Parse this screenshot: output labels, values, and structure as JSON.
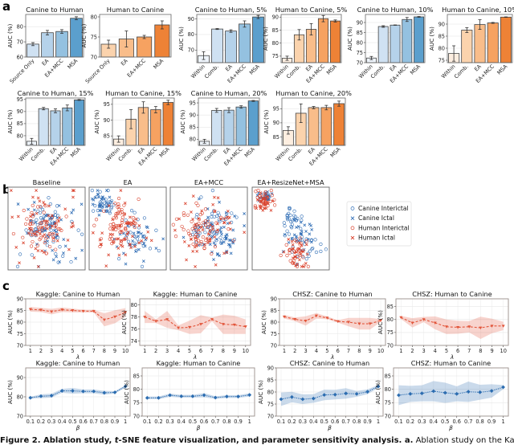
{
  "panel_labels": {
    "a": "a",
    "b": "b",
    "c": "c"
  },
  "axis": {
    "auc_label": "AUC (%)",
    "lambda_label": "λ",
    "beta_label": "β"
  },
  "colors": {
    "blue_ramp": [
      "#eef4fb",
      "#cfe1f2",
      "#b5d2ea",
      "#94c1e0",
      "#5b9fcd"
    ],
    "orange_ramp": [
      "#fdeee0",
      "#fbd3ad",
      "#f9bd8a",
      "#f6a261",
      "#ee8236"
    ],
    "canine": "#2f6db5",
    "human": "#d9402b",
    "line_red": "#e2553a",
    "line_blue": "#2b6cb0"
  },
  "chart_data": [
    {
      "type": "bar",
      "title": "Canine to Human",
      "ylabel": "AUC (%)",
      "ramp": "blue",
      "categories": [
        "Source Only",
        "EA",
        "EA+MCC",
        "MSA"
      ],
      "values": [
        68.5,
        76.0,
        76.8,
        85.5
      ],
      "errors": [
        1.0,
        1.5,
        1.2,
        1.0
      ],
      "ylim": [
        60,
        88
      ],
      "yticks": [
        60,
        70,
        80
      ]
    },
    {
      "type": "bar",
      "title": "Human to Canine",
      "ylabel": "AUC (%)",
      "ramp": "orange",
      "categories": [
        "Source Only",
        "EA",
        "EA+MCC",
        "MSA"
      ],
      "values": [
        73.2,
        74.5,
        75.0,
        78.0
      ],
      "errors": [
        1.0,
        2.0,
        0.4,
        1.0
      ],
      "ylim": [
        70,
        80.6
      ],
      "yticks": [
        70,
        75,
        80
      ]
    },
    {
      "type": "bar",
      "title": "Canine to Human, 5%",
      "ylabel": "AUC (%)",
      "ramp": "blue",
      "categories": [
        "Within",
        "Comb.",
        "EA",
        "EA+MCC",
        "MSA"
      ],
      "values": [
        66.5,
        83.5,
        82.2,
        86.7,
        91.2
      ],
      "errors": [
        2.5,
        0.3,
        0.8,
        2.0,
        1.0
      ],
      "ylim": [
        62,
        92.8
      ],
      "yticks": [
        70,
        80,
        90
      ]
    },
    {
      "type": "bar",
      "title": "Human to Canine, 5%",
      "ylabel": "AUC (%)",
      "ramp": "orange",
      "categories": [
        "Within",
        "Comb.",
        "EA",
        "EA+MCC",
        "MSA"
      ],
      "values": [
        74.2,
        83.2,
        85.3,
        89.4,
        88.5
      ],
      "errors": [
        0.8,
        2.0,
        2.2,
        1.2,
        0.4
      ],
      "ylim": [
        72.5,
        91
      ],
      "yticks": [
        75,
        80,
        85,
        90
      ]
    },
    {
      "type": "bar",
      "title": "Canine to Human, 10%",
      "ylabel": "AUC (%)",
      "ramp": "blue",
      "categories": [
        "Within",
        "Comb.",
        "EA",
        "EA+MCC",
        "MSA"
      ],
      "values": [
        72.3,
        88.0,
        88.7,
        91.5,
        92.8
      ],
      "errors": [
        0.8,
        0.4,
        0.1,
        1.0,
        0.2
      ],
      "ylim": [
        70,
        94
      ],
      "yticks": [
        70,
        75,
        80,
        85,
        90
      ]
    },
    {
      "type": "bar",
      "title": "Human to Canine, 10%",
      "ylabel": "AUC (%)",
      "ramp": "orange",
      "categories": [
        "Within",
        "Comb.",
        "EA",
        "EA+MCC",
        "MSA"
      ],
      "values": [
        77.8,
        87.5,
        89.8,
        90.5,
        92.9
      ],
      "errors": [
        3.2,
        1.0,
        2.0,
        0.2,
        0.1
      ],
      "ylim": [
        74,
        94
      ],
      "yticks": [
        75,
        80,
        85,
        90
      ]
    },
    {
      "type": "bar",
      "title": "Canine to Human, 15%",
      "ylabel": "AUC (%)",
      "ramp": "blue",
      "categories": [
        "Within",
        "Comb.",
        "EA",
        "EA+MCC",
        "MSA"
      ],
      "values": [
        77.7,
        91.2,
        90.3,
        91.5,
        94.8
      ],
      "errors": [
        1.2,
        0.5,
        0.8,
        1.2,
        0.2
      ],
      "ylim": [
        76,
        95.6
      ],
      "yticks": [
        80,
        85,
        90,
        95
      ]
    },
    {
      "type": "bar",
      "title": "Human to Canine, 15%",
      "ylabel": "AUC (%)",
      "ramp": "orange",
      "categories": [
        "Within",
        "Comb.",
        "EA",
        "EA+MCC",
        "MSA"
      ],
      "values": [
        84.0,
        90.3,
        94.0,
        93.3,
        95.6
      ],
      "errors": [
        1.0,
        3.0,
        1.8,
        1.0,
        0.7
      ],
      "ylim": [
        82,
        97
      ],
      "yticks": [
        85,
        90,
        95
      ]
    },
    {
      "type": "bar",
      "title": "Canine to Human, 20%",
      "ylabel": "AUC (%)",
      "ramp": "blue",
      "categories": [
        "Within",
        "Comb.",
        "EA",
        "EA+MCC",
        "MSA"
      ],
      "values": [
        79.2,
        91.9,
        92.0,
        93.3,
        95.8
      ],
      "errors": [
        0.8,
        0.8,
        1.0,
        0.5,
        0.2
      ],
      "ylim": [
        77.5,
        97
      ],
      "yticks": [
        80,
        85,
        90,
        95
      ]
    },
    {
      "type": "bar",
      "title": "Human to Canine, 20%",
      "ylabel": "AUC (%)",
      "ramp": "orange",
      "categories": [
        "Within",
        "Comb.",
        "EA",
        "EA+MCC",
        "MSA"
      ],
      "values": [
        87.3,
        93.4,
        95.4,
        95.4,
        96.8
      ],
      "errors": [
        1.3,
        3.3,
        0.4,
        0.8,
        0.9
      ],
      "ylim": [
        82,
        98.8
      ],
      "yticks": [
        85,
        90,
        95
      ]
    },
    {
      "type": "scatter",
      "title": "Baseline"
    },
    {
      "type": "scatter",
      "title": "EA"
    },
    {
      "type": "scatter",
      "title": "EA+MCC"
    },
    {
      "type": "scatter",
      "title": "EA+ResizeNet+MSA",
      "legend": [
        "Canine Interictal",
        "Canine Ictal",
        "Human Interictal",
        "Human Ictal"
      ],
      "legend_position": "right"
    },
    {
      "type": "line",
      "title": "Kaggle: Canine to Human",
      "xlabel": "λ",
      "ylabel": "AUC (%)",
      "color": "red",
      "x": [
        "1",
        "2",
        "3",
        "4",
        "5",
        "6",
        "7",
        "8",
        "9",
        "10"
      ],
      "values": [
        85.5,
        85.2,
        84.5,
        85.3,
        85.0,
        84.7,
        84.7,
        81.0,
        82.3,
        84.2
      ],
      "band": [
        1.0,
        0.9,
        1.2,
        1.0,
        0.8,
        0.6,
        0.6,
        2.8,
        2.8,
        1.8
      ],
      "ylim": [
        70,
        90
      ],
      "yticks": [
        70,
        75,
        80,
        85,
        90
      ],
      "grid": true
    },
    {
      "type": "line",
      "title": "Kaggle: Human to Canine",
      "xlabel": "λ",
      "ylabel": "AUC (%)",
      "color": "red",
      "x": [
        "1",
        "2",
        "3",
        "4",
        "5",
        "6",
        "7",
        "8",
        "9",
        "10"
      ],
      "values": [
        78.0,
        77.3,
        77.6,
        76.2,
        76.3,
        76.8,
        77.6,
        76.8,
        76.7,
        76.4
      ],
      "band": [
        1.0,
        0.3,
        1.4,
        0.4,
        1.1,
        1.5,
        0.3,
        1.6,
        1.5,
        1.2
      ],
      "ylim": [
        73.3,
        81
      ],
      "yticks": [
        74,
        76,
        78,
        80
      ],
      "grid": true
    },
    {
      "type": "line",
      "title": "CHSZ: Canine to Human",
      "xlabel": "λ",
      "ylabel": "AUC (%)",
      "color": "red",
      "x": [
        "1",
        "2",
        "3",
        "4",
        "5",
        "6",
        "7",
        "8",
        "9",
        "10"
      ],
      "values": [
        82.3,
        81.2,
        80.5,
        82.7,
        81.8,
        80.3,
        80.0,
        79.3,
        79.3,
        80.7
      ],
      "band": [
        0.8,
        0.8,
        2.0,
        1.2,
        0.6,
        0.5,
        1.8,
        2.5,
        2.5,
        0.6
      ],
      "ylim": [
        70,
        90
      ],
      "yticks": [
        70,
        75,
        80,
        85,
        90
      ],
      "grid": true
    },
    {
      "type": "line",
      "title": "CHSZ: Human to Canine",
      "xlabel": "λ",
      "ylabel": "AUC (%)",
      "color": "red",
      "x": [
        "1",
        "2",
        "3",
        "4",
        "5",
        "6",
        "7",
        "8",
        "9",
        "10"
      ],
      "values": [
        80.8,
        78.7,
        80.0,
        78.7,
        77.2,
        77.0,
        77.2,
        76.8,
        77.5,
        77.5
      ],
      "band": [
        0.6,
        1.8,
        1.0,
        2.5,
        2.8,
        2.5,
        2.2,
        4.3,
        2.8,
        1.6
      ],
      "ylim": [
        70,
        88
      ],
      "yticks": [
        70,
        75,
        80,
        85
      ],
      "grid": true
    },
    {
      "type": "line",
      "title": "Kaggle: Canine to Human",
      "xlabel": "β",
      "ylabel": "AUC (%)",
      "color": "blue",
      "x": [
        "0.1",
        "0.2",
        "0.3",
        "0.4",
        "0.5",
        "0.6",
        "0.7",
        "0.8",
        "0.9",
        "1"
      ],
      "values": [
        79.5,
        80.3,
        80.6,
        83.1,
        83.1,
        82.8,
        82.8,
        82.1,
        82.3,
        85.4
      ],
      "band": [
        0.5,
        1.0,
        1.0,
        1.0,
        1.5,
        1.0,
        1.0,
        1.0,
        0.6,
        0.6
      ],
      "ylim": [
        70,
        95
      ],
      "yticks": [
        70,
        80,
        90
      ],
      "grid": true
    },
    {
      "type": "line",
      "title": "Kaggle: Human to Canine",
      "xlabel": "β",
      "ylabel": "AUC (%)",
      "color": "blue",
      "x": [
        "0.1",
        "0.2",
        "0.3",
        "0.4",
        "0.5",
        "0.6",
        "0.7",
        "0.8",
        "0.9",
        "1"
      ],
      "values": [
        76.8,
        76.8,
        77.8,
        77.4,
        77.4,
        77.8,
        76.9,
        77.3,
        77.3,
        77.9
      ],
      "band": [
        0.5,
        0.5,
        0.6,
        0.5,
        0.5,
        0.8,
        0.5,
        0.5,
        0.5,
        0.6
      ],
      "ylim": [
        70,
        88
      ],
      "yticks": [
        70,
        75,
        80,
        85
      ],
      "grid": true
    },
    {
      "type": "line",
      "title": "CHSZ: Canine to Human",
      "xlabel": "β",
      "ylabel": "AUC (%)",
      "color": "blue",
      "x": [
        "0.1",
        "0.2",
        "0.3",
        "0.4",
        "0.5",
        "0.6",
        "0.7",
        "0.8",
        "0.9",
        "1"
      ],
      "values": [
        77.0,
        77.9,
        77.0,
        77.3,
        78.8,
        78.9,
        79.4,
        79.2,
        80.1,
        82.3
      ],
      "band": [
        2.8,
        2.2,
        2.0,
        1.8,
        2.2,
        2.0,
        2.2,
        1.2,
        1.0,
        0.6
      ],
      "ylim": [
        70,
        90
      ],
      "yticks": [
        70,
        75,
        80,
        85,
        90
      ],
      "grid": true
    },
    {
      "type": "line",
      "title": "CHSZ: Human to Canine",
      "xlabel": "β",
      "ylabel": "AUC (%)",
      "color": "blue",
      "x": [
        "0.1",
        "0.2",
        "0.3",
        "0.4",
        "0.5",
        "0.6",
        "0.7",
        "0.8",
        "0.9",
        "1"
      ],
      "values": [
        77.8,
        78.3,
        78.5,
        79.3,
        78.7,
        78.3,
        79.1,
        78.9,
        79.4,
        80.8
      ],
      "band": [
        3.7,
        3.0,
        3.0,
        3.8,
        3.8,
        2.8,
        3.8,
        2.8,
        2.5,
        0.8
      ],
      "ylim": [
        70,
        88
      ],
      "yticks": [
        70,
        75,
        80,
        85
      ],
      "grid": true
    }
  ],
  "caption": {
    "part1": "Figure 2. Ablation study, ",
    "italic": "t",
    "part2": "-SNE feature visualization, and parameter sensitivity analysis.",
    "part3": " a.",
    "part4": " Ablation study on the Kaggle iEEG"
  }
}
